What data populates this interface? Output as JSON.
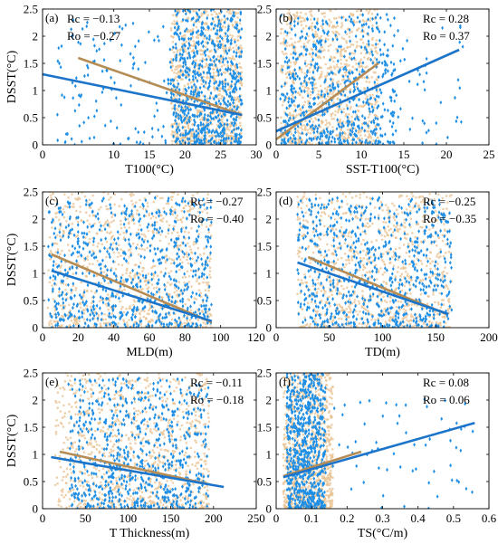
{
  "colors": {
    "ocean": "#1f8fe6",
    "ocean_line": "#1b74c9",
    "other": "#e8c290",
    "other_line": "#b68c55",
    "axis": "#000000"
  },
  "chart_data": [
    {
      "type": "scatter",
      "tag": "(a)",
      "xlabel": "T100(°C)",
      "ylabel": "DSST(°C)",
      "xlim": [
        0,
        30
      ],
      "ylim": [
        0,
        2.5
      ],
      "xticks": [
        "0",
        "10",
        "15",
        "20",
        "25",
        "30"
      ],
      "xtick_values": [
        0,
        10,
        15,
        20,
        25,
        30
      ],
      "yticks": [
        "0",
        "0.5",
        "1",
        "1.5",
        "2",
        "2.5"
      ],
      "ytick_values": [
        0,
        0.5,
        1,
        1.5,
        2,
        2.5
      ],
      "stats": [
        {
          "label": "Rc = −0.13",
          "series": "c"
        },
        {
          "label": "Ro = −0.27",
          "series": "o"
        }
      ],
      "stats_position": "top-left",
      "clouds": [
        {
          "series": "o",
          "x": [
            18,
            28
          ],
          "ymax": 2.5,
          "n": 900
        },
        {
          "series": "c",
          "x": [
            18,
            28
          ],
          "ymax": 2.5,
          "n": 700
        },
        {
          "series": "c",
          "x": [
            2,
            18
          ],
          "ymax": 2.3,
          "n": 120
        }
      ],
      "fit_lines": [
        {
          "series": "o",
          "x": [
            5,
            28
          ],
          "y": [
            1.6,
            0.55
          ]
        },
        {
          "series": "c",
          "x": [
            0,
            28
          ],
          "y": [
            1.3,
            0.55
          ]
        }
      ]
    },
    {
      "type": "scatter",
      "tag": "(b)",
      "xlabel": "SST-T100(°C)",
      "ylabel": "",
      "xlim": [
        0,
        25
      ],
      "ylim": [
        0,
        2.5
      ],
      "xticks": [
        "0",
        "5",
        "10",
        "15",
        "20",
        "25"
      ],
      "xtick_values": [
        0,
        5,
        10,
        15,
        20,
        25
      ],
      "yticks": [
        "0",
        "0.5",
        "1",
        "1.5",
        "2",
        "2.5"
      ],
      "ytick_values": [
        0,
        0.5,
        1,
        1.5,
        2,
        2.5
      ],
      "stats": [
        {
          "label": "Rc = 0.28",
          "series": "c"
        },
        {
          "label": "Ro = 0.37",
          "series": "o"
        }
      ],
      "stats_position": "top-right",
      "clouds": [
        {
          "series": "o",
          "x": [
            0.5,
            12
          ],
          "ymax": 2.5,
          "n": 900
        },
        {
          "series": "c",
          "x": [
            0.5,
            14
          ],
          "ymax": 2.4,
          "n": 600
        },
        {
          "series": "c",
          "x": [
            14,
            22
          ],
          "ymax": 2.2,
          "n": 40
        }
      ],
      "fit_lines": [
        {
          "series": "o",
          "x": [
            0,
            12
          ],
          "y": [
            0.1,
            1.5
          ]
        },
        {
          "series": "c",
          "x": [
            0,
            21.5
          ],
          "y": [
            0.25,
            1.75
          ]
        }
      ]
    },
    {
      "type": "scatter",
      "tag": "(c)",
      "xlabel": "MLD(m)",
      "ylabel": "DSST(°C)",
      "xlim": [
        0,
        120
      ],
      "ylim": [
        0,
        2.5
      ],
      "xticks": [
        "0",
        "20",
        "40",
        "60",
        "80",
        "100",
        "120"
      ],
      "xtick_values": [
        0,
        20,
        40,
        60,
        80,
        100,
        120
      ],
      "yticks": [
        "0",
        "0.5",
        "1",
        "1.5",
        "2",
        "2.5"
      ],
      "ytick_values": [
        0,
        0.5,
        1,
        1.5,
        2,
        2.5
      ],
      "stats": [
        {
          "label": "Rc = −0.27",
          "series": "c"
        },
        {
          "label": "Ro = −0.40",
          "series": "o"
        }
      ],
      "stats_position": "top-right",
      "clouds": [
        {
          "series": "o",
          "x": [
            3,
            95
          ],
          "ymax": 2.5,
          "n": 900
        },
        {
          "series": "c",
          "x": [
            3,
            95
          ],
          "ymax": 2.4,
          "n": 700
        }
      ],
      "fit_lines": [
        {
          "series": "o",
          "x": [
            5,
            95
          ],
          "y": [
            1.35,
            0.1
          ]
        },
        {
          "series": "c",
          "x": [
            5,
            95
          ],
          "y": [
            1.05,
            0.12
          ]
        }
      ]
    },
    {
      "type": "scatter",
      "tag": "(d)",
      "xlabel": "TD(m)",
      "ylabel": "",
      "xlim": [
        0,
        200
      ],
      "ylim": [
        0,
        2.5
      ],
      "xticks": [
        "0",
        "50",
        "100",
        "150",
        "200"
      ],
      "xtick_values": [
        0,
        50,
        100,
        150,
        200
      ],
      "yticks": [
        "0",
        "0.5",
        "1",
        "1.5",
        "2",
        "2.5"
      ],
      "ytick_values": [
        0,
        0.5,
        1,
        1.5,
        2,
        2.5
      ],
      "stats": [
        {
          "label": "Rc = −0.25",
          "series": "c"
        },
        {
          "label": "Ro = −0.35",
          "series": "o"
        }
      ],
      "stats_position": "top-right",
      "clouds": [
        {
          "series": "o",
          "x": [
            20,
            165
          ],
          "ymax": 2.5,
          "n": 900
        },
        {
          "series": "c",
          "x": [
            20,
            165
          ],
          "ymax": 2.4,
          "n": 700
        }
      ],
      "fit_lines": [
        {
          "series": "o",
          "x": [
            30,
            160
          ],
          "y": [
            1.3,
            0.25
          ]
        },
        {
          "series": "c",
          "x": [
            20,
            162
          ],
          "y": [
            1.2,
            0.25
          ]
        }
      ]
    },
    {
      "type": "scatter",
      "tag": "(e)",
      "xlabel": "T Thickness(m)",
      "ylabel": "DSST(°C)",
      "xlim": [
        0,
        250
      ],
      "ylim": [
        0,
        2.5
      ],
      "xticks": [
        "0",
        "50",
        "100",
        "150",
        "200",
        "250"
      ],
      "xtick_values": [
        0,
        50,
        100,
        150,
        200,
        250
      ],
      "yticks": [
        "0",
        "0.5",
        "1",
        "1.5",
        "2",
        "2.5"
      ],
      "ytick_values": [
        0,
        0.5,
        1,
        1.5,
        2,
        2.5
      ],
      "stats": [
        {
          "label": "Rc = −0.11",
          "series": "c"
        },
        {
          "label": "Ro = −0.18",
          "series": "o"
        }
      ],
      "stats_position": "top-right",
      "clouds": [
        {
          "series": "o",
          "x": [
            15,
            195
          ],
          "ymax": 2.5,
          "n": 900
        },
        {
          "series": "c",
          "x": [
            30,
            195
          ],
          "ymax": 2.4,
          "n": 700
        }
      ],
      "fit_lines": [
        {
          "series": "o",
          "x": [
            20,
            195
          ],
          "y": [
            1.05,
            0.45
          ]
        },
        {
          "series": "c",
          "x": [
            10,
            212
          ],
          "y": [
            0.95,
            0.4
          ]
        }
      ]
    },
    {
      "type": "scatter",
      "tag": "(f)",
      "xlabel": "TS(°C/m)",
      "ylabel": "",
      "xlim": [
        0,
        0.6
      ],
      "ylim": [
        0,
        2.5
      ],
      "xticks": [
        "0",
        "0.1",
        "0.2",
        "0.3",
        "0.4",
        "0.5",
        "0.6"
      ],
      "xtick_values": [
        0,
        0.1,
        0.2,
        0.3,
        0.4,
        0.5,
        0.6
      ],
      "yticks": [
        "0",
        "0.5",
        "1",
        "1.5",
        "2",
        "2.5"
      ],
      "ytick_values": [
        0,
        0.5,
        1,
        1.5,
        2,
        2.5
      ],
      "stats": [
        {
          "label": "Rc = 0.08",
          "series": "c"
        },
        {
          "label": "Ro = 0.06",
          "series": "o"
        }
      ],
      "stats_position": "top-right",
      "clouds": [
        {
          "series": "o",
          "x": [
            0.02,
            0.16
          ],
          "ymax": 2.5,
          "n": 900
        },
        {
          "series": "c",
          "x": [
            0.03,
            0.14
          ],
          "ymax": 2.5,
          "n": 700
        },
        {
          "series": "c",
          "x": [
            0.14,
            0.56
          ],
          "ymax": 2.1,
          "n": 60
        }
      ],
      "fit_lines": [
        {
          "series": "o",
          "x": [
            0.02,
            0.24
          ],
          "y": [
            0.6,
            1.05
          ]
        },
        {
          "series": "c",
          "x": [
            0.02,
            0.56
          ],
          "y": [
            0.58,
            1.58
          ]
        }
      ]
    }
  ]
}
